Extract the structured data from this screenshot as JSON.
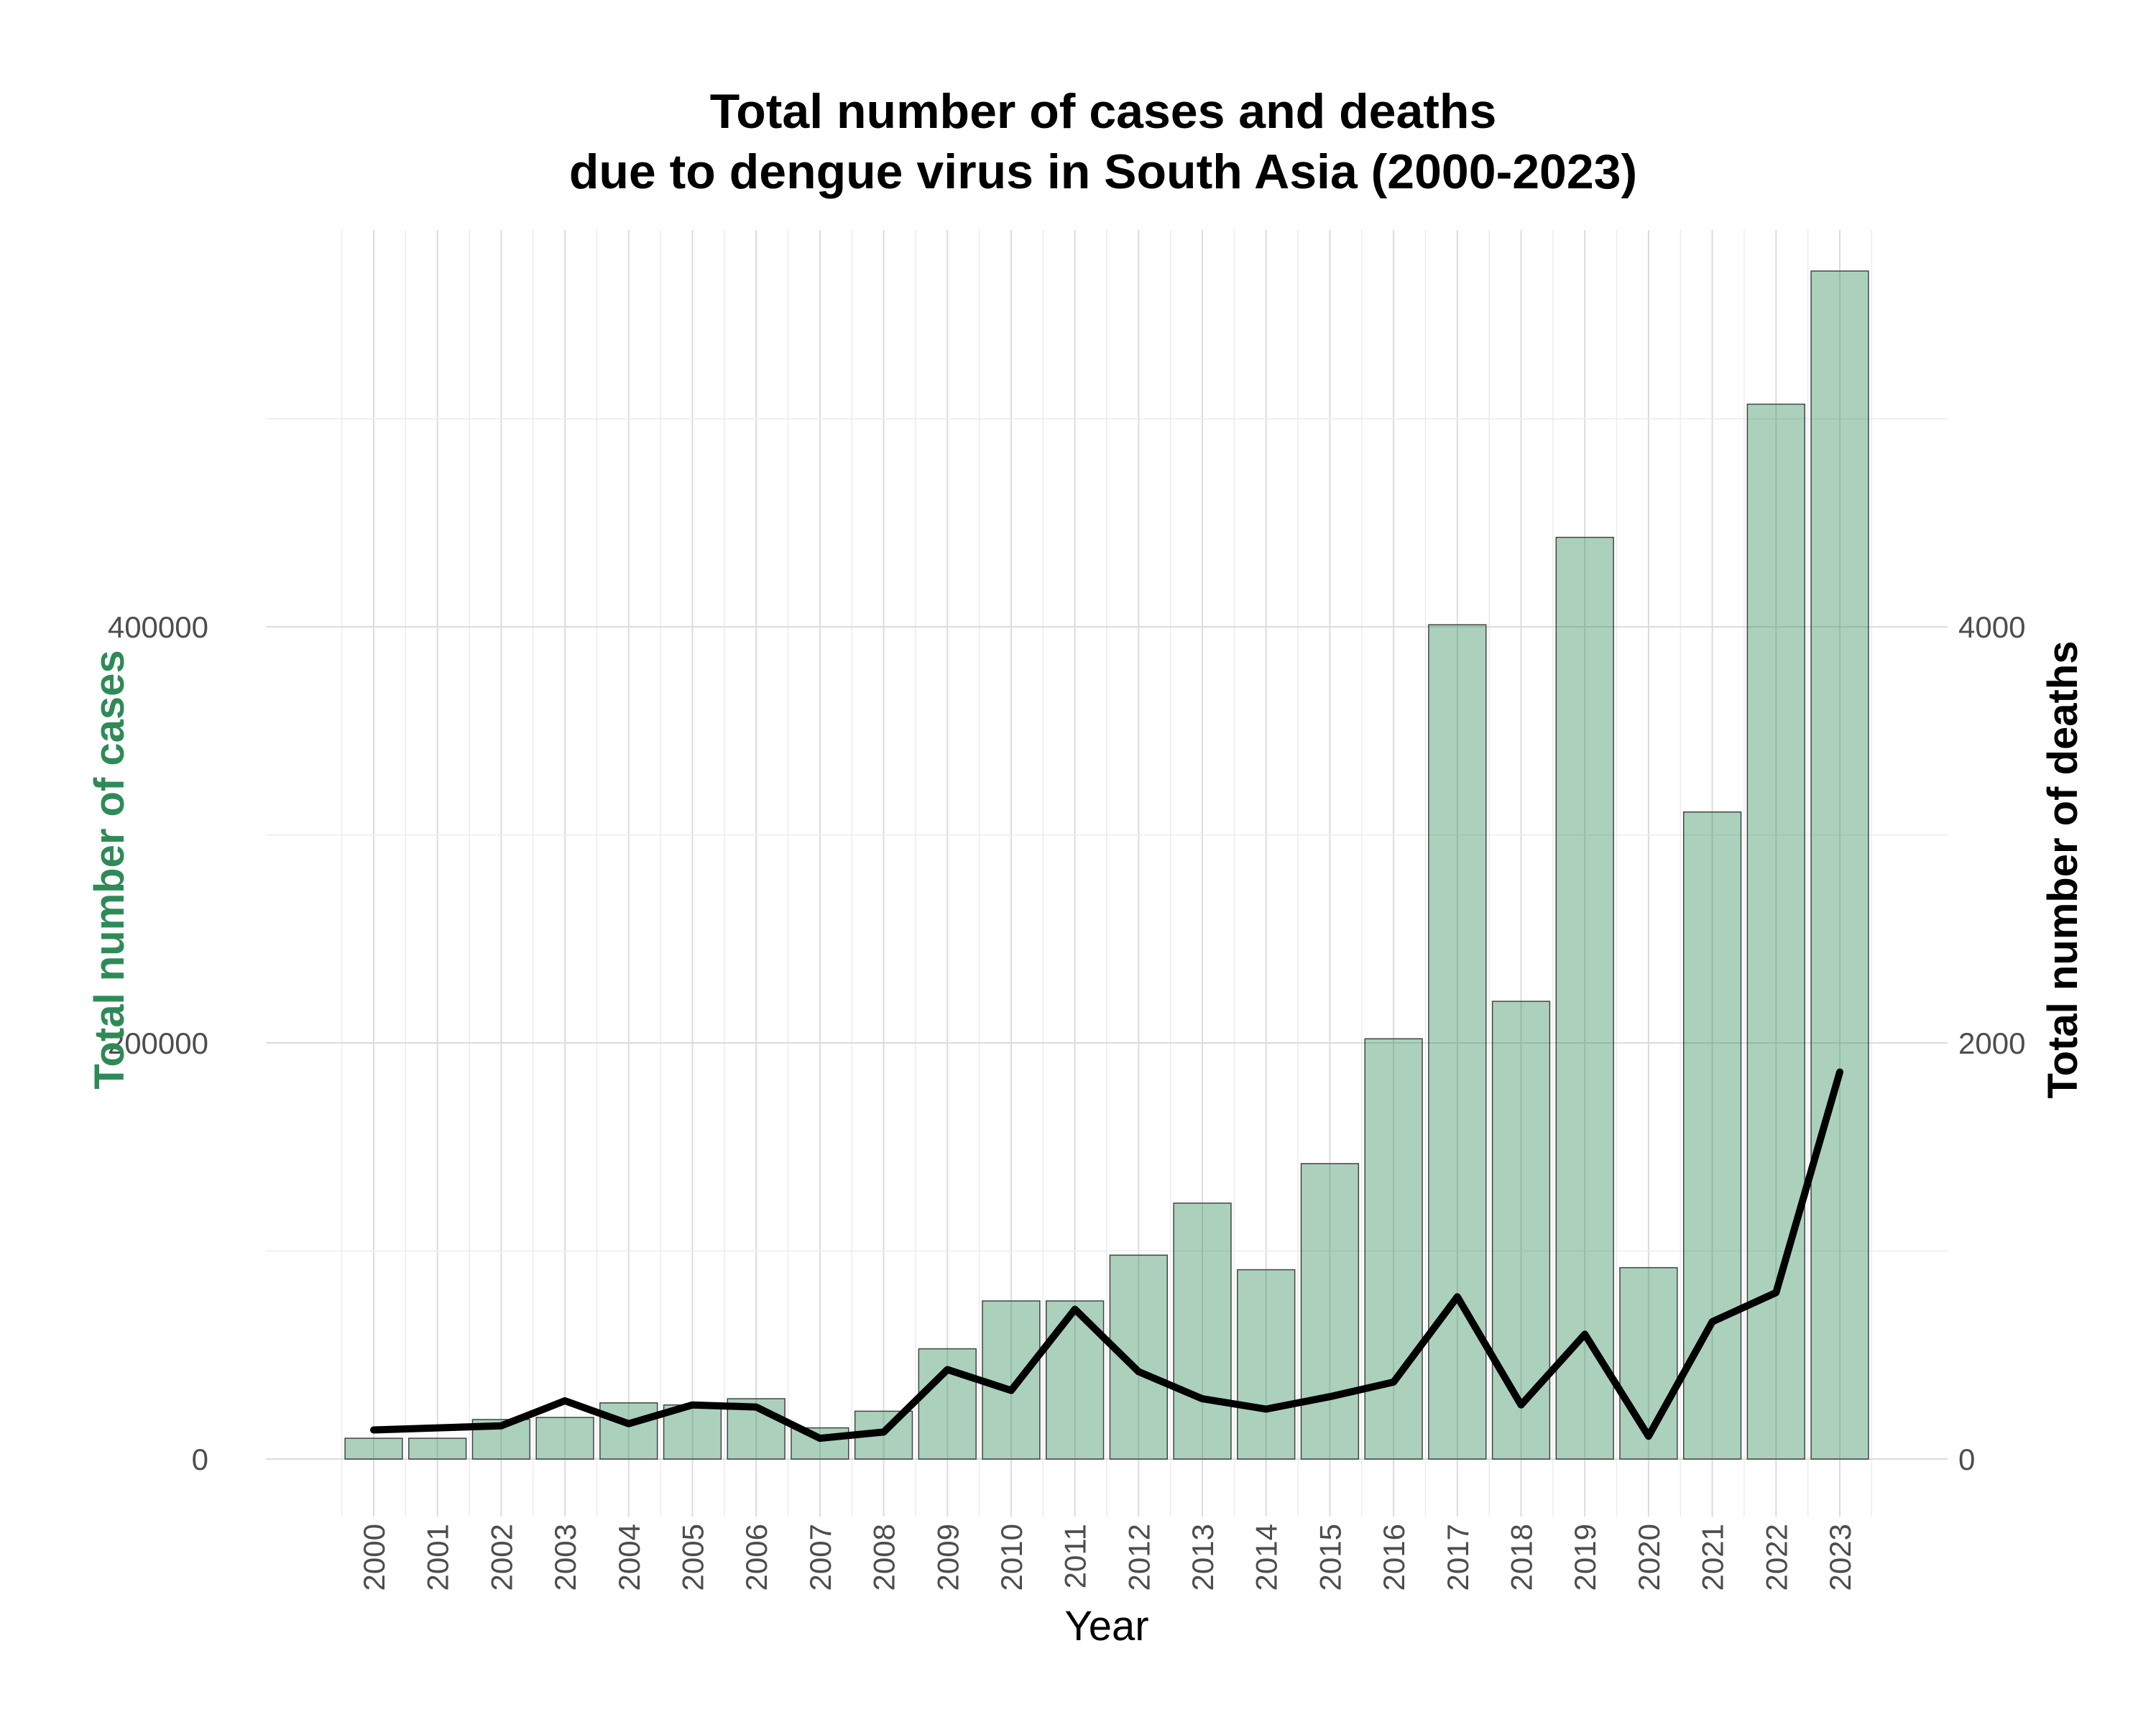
{
  "chart_data": {
    "type": "bar",
    "title_lines": [
      "Total number of cases and deaths",
      "due to dengue virus in South Asia (2000-2023)"
    ],
    "xlabel": "Year",
    "ylabel_left": "Total number of cases",
    "ylabel_right": "Total number of deaths",
    "ylim_left": [
      0,
      570000
    ],
    "ylim_right": [
      0,
      5700
    ],
    "yticks_left": [
      "0",
      "200000",
      "400000"
    ],
    "yticks_right": [
      "0",
      "2000",
      "4000"
    ],
    "grid": true,
    "categories": [
      "2000",
      "2001",
      "2002",
      "2003",
      "2004",
      "2005",
      "2006",
      "2007",
      "2008",
      "2009",
      "2010",
      "2011",
      "2012",
      "2013",
      "2014",
      "2015",
      "2016",
      "2017",
      "2018",
      "2019",
      "2020",
      "2021",
      "2022",
      "2023"
    ],
    "series": [
      {
        "kind": "bar",
        "axis": "left",
        "color": "#2e8b57",
        "values": [
          10000,
          10000,
          19000,
          20000,
          27000,
          26000,
          29000,
          15000,
          23000,
          53000,
          76000,
          76000,
          98000,
          123000,
          91000,
          142000,
          202000,
          401000,
          220000,
          443000,
          92000,
          311000,
          507000,
          571000
        ]
      },
      {
        "kind": "line",
        "axis": "right",
        "color": "#000000",
        "values": [
          140,
          150,
          160,
          280,
          170,
          260,
          250,
          100,
          130,
          430,
          330,
          720,
          420,
          290,
          240,
          300,
          370,
          780,
          260,
          600,
          110,
          660,
          800,
          1860
        ]
      }
    ],
    "colors": {
      "left_axis_title": "#2e8b57",
      "right_axis_title": "#000000",
      "bar_fill": "#2e8b57"
    }
  }
}
